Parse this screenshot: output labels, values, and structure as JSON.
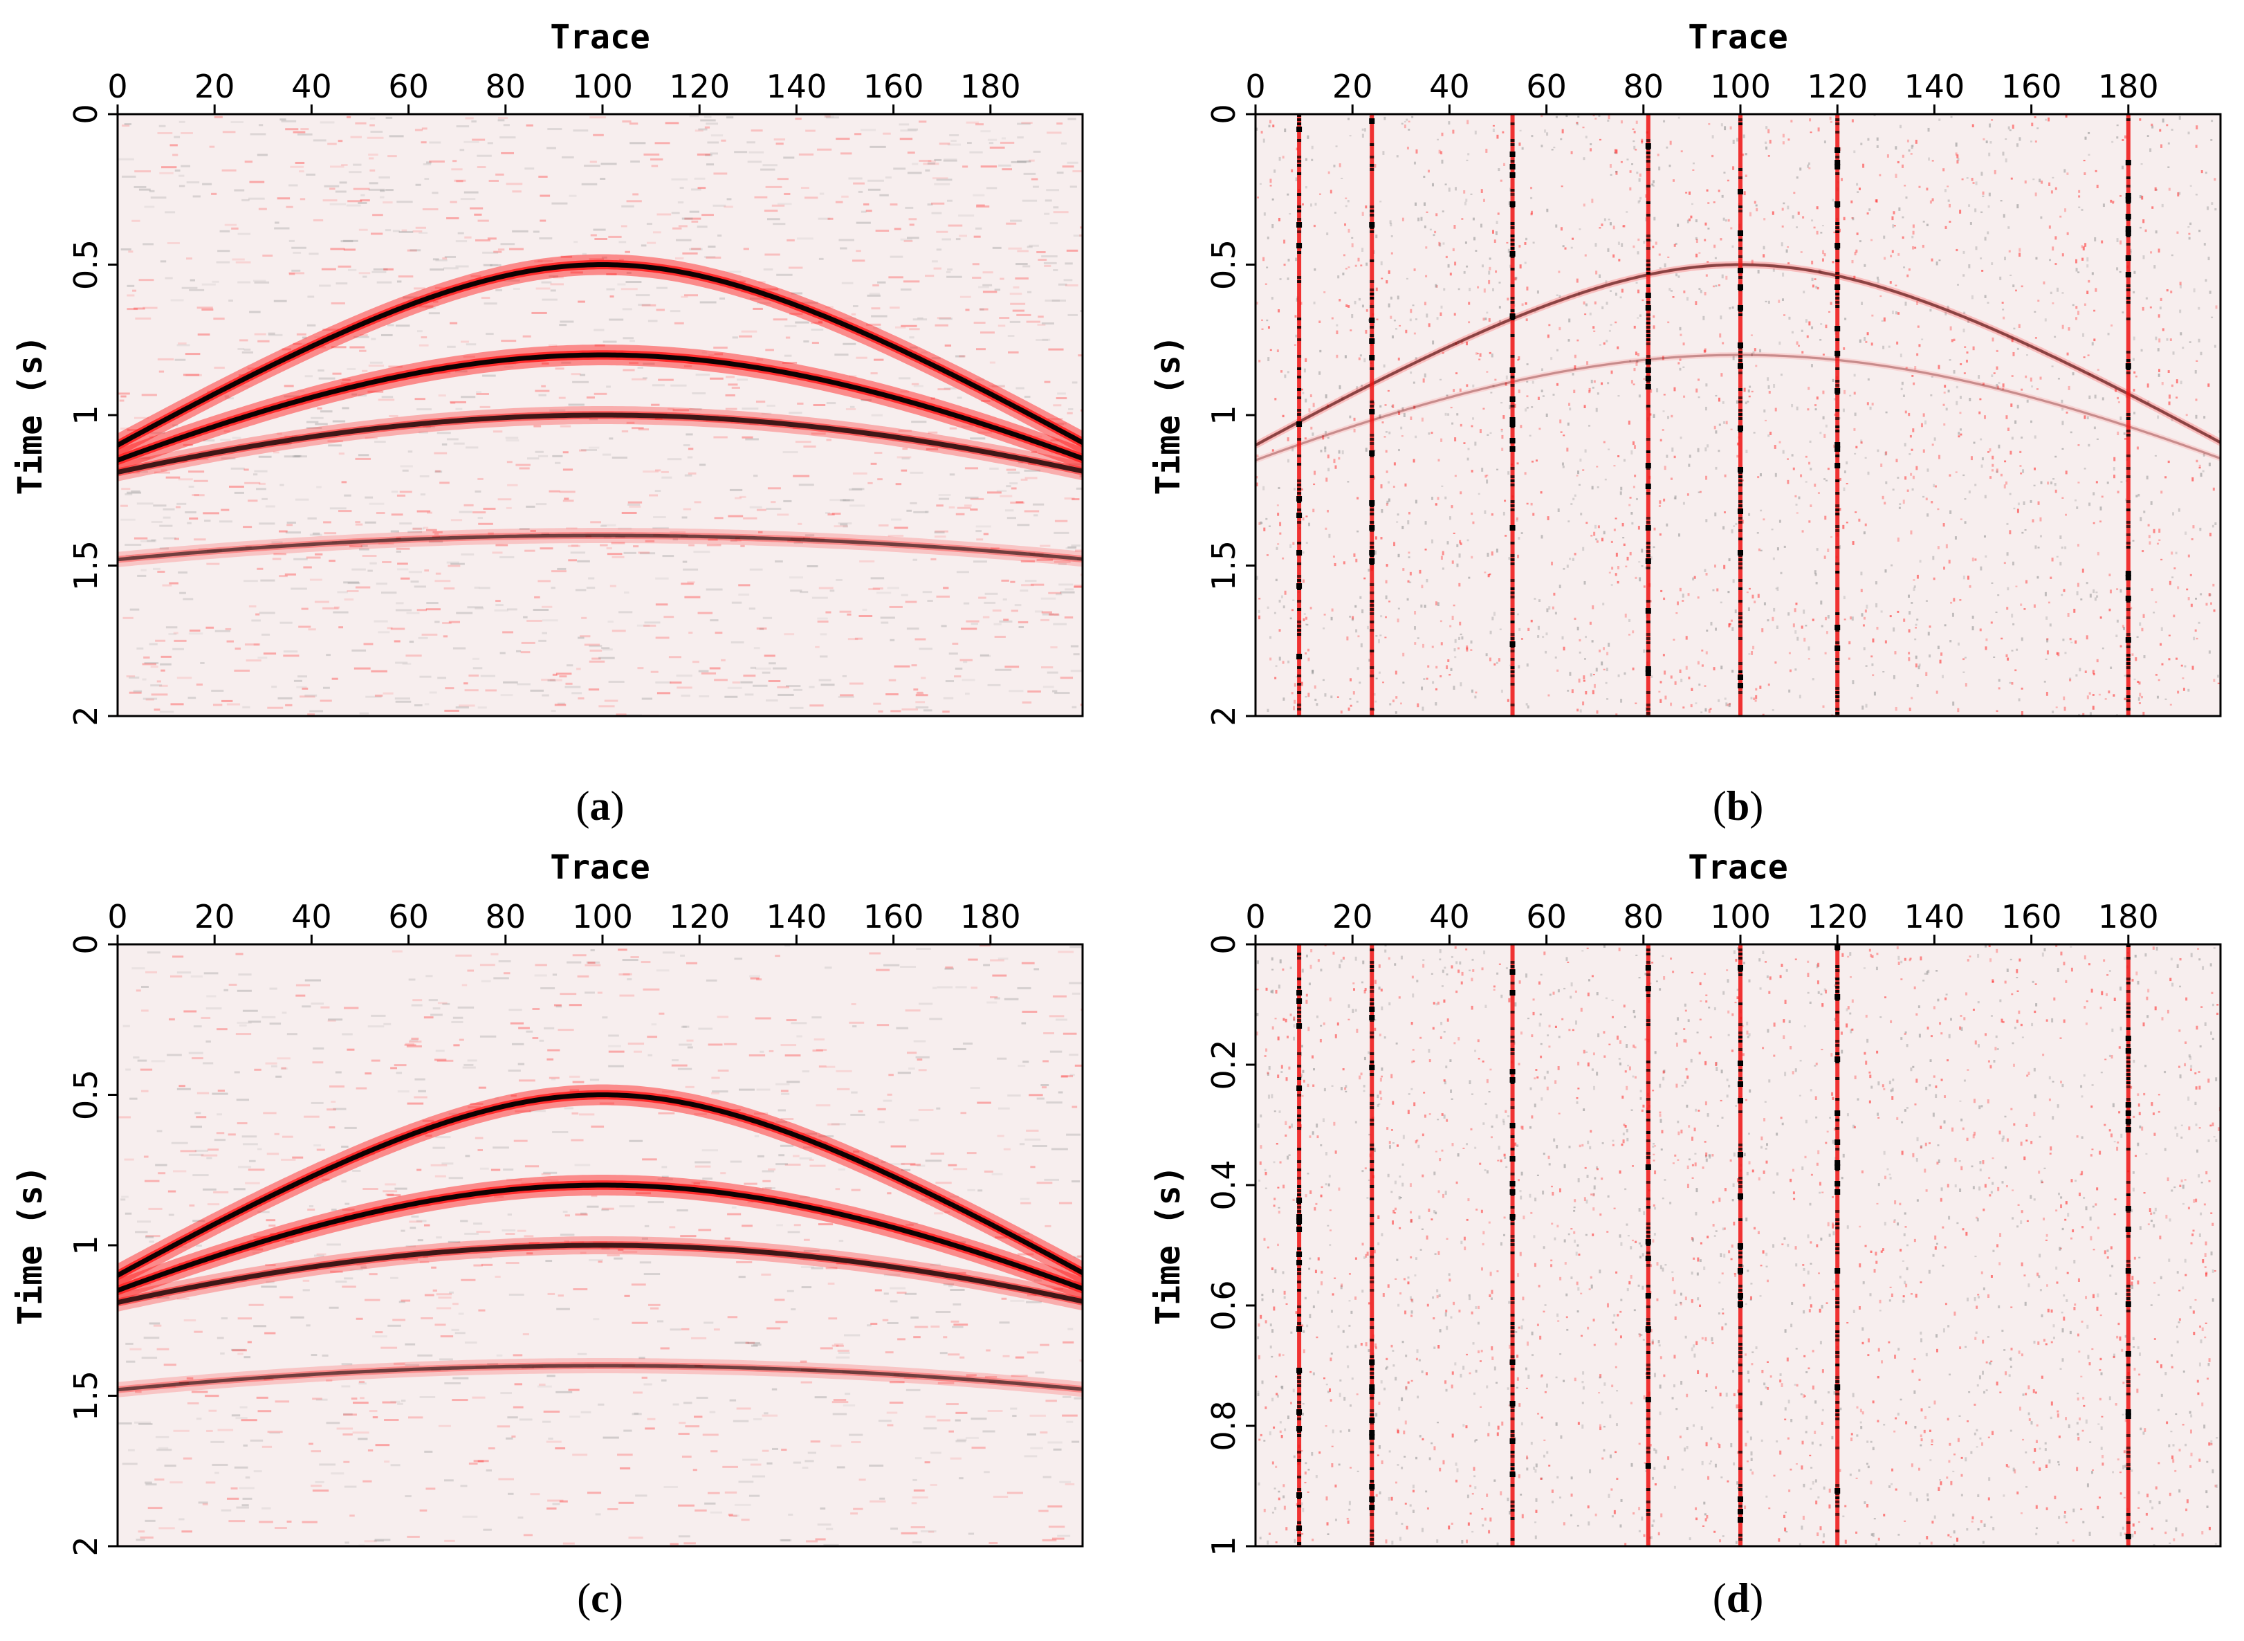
{
  "colors": {
    "background": "#f7eeee",
    "frame": "#000000",
    "wiggle_dark": "#000000",
    "wiggle_red": "#ff1a1a",
    "spike_red": "#ee1111",
    "noise_gray": "#8a8a8a"
  },
  "chart_data": [
    {
      "type": "heatmap",
      "panel": "(a)",
      "panel_letter": "a",
      "title": "",
      "xlabel": "Trace",
      "ylabel": "Time (s)",
      "xlim": [
        0,
        199
      ],
      "ylim": [
        0,
        2
      ],
      "x_ticks": [
        "0",
        "20",
        "40",
        "60",
        "80",
        "100",
        "120",
        "140",
        "160",
        "180"
      ],
      "y_ticks": [
        "0",
        "0.5",
        "1",
        "1.5",
        "2"
      ],
      "events": [
        {
          "t0": 0.5,
          "t_edge": 1.1,
          "strength": "strong"
        },
        {
          "t0": 0.8,
          "t_edge": 1.15,
          "strength": "strong"
        },
        {
          "t0": 1.0,
          "t_edge": 1.19,
          "strength": "medium"
        },
        {
          "t0": 1.4,
          "t_edge": 1.48,
          "strength": "weak"
        }
      ],
      "noise": "random",
      "spike_traces": []
    },
    {
      "type": "heatmap",
      "panel": "(b)",
      "panel_letter": "b",
      "title": "",
      "xlabel": "Trace",
      "ylabel": "Time (s)",
      "xlim": [
        0,
        199
      ],
      "ylim": [
        0,
        2
      ],
      "x_ticks": [
        "0",
        "20",
        "40",
        "60",
        "80",
        "100",
        "120",
        "140",
        "160",
        "180"
      ],
      "y_ticks": [
        "0",
        "0.5",
        "1",
        "1.5",
        "2"
      ],
      "events": [
        {
          "t0": 0.5,
          "t_edge": 1.1,
          "strength": "faint"
        },
        {
          "t0": 0.8,
          "t_edge": 1.15,
          "strength": "very-faint"
        }
      ],
      "noise": "dense",
      "spike_traces": [
        9,
        24,
        53,
        81,
        100,
        120,
        180
      ]
    },
    {
      "type": "heatmap",
      "panel": "(c)",
      "panel_letter": "c",
      "title": "",
      "xlabel": "Trace",
      "ylabel": "Time (s)",
      "xlim": [
        0,
        199
      ],
      "ylim": [
        0,
        2
      ],
      "x_ticks": [
        "0",
        "20",
        "40",
        "60",
        "80",
        "100",
        "120",
        "140",
        "160",
        "180"
      ],
      "y_ticks": [
        "0",
        "0.5",
        "1",
        "1.5",
        "2"
      ],
      "events": [
        {
          "t0": 0.5,
          "t_edge": 1.1,
          "strength": "strong"
        },
        {
          "t0": 0.8,
          "t_edge": 1.15,
          "strength": "strong"
        },
        {
          "t0": 1.0,
          "t_edge": 1.19,
          "strength": "medium"
        },
        {
          "t0": 1.4,
          "t_edge": 1.48,
          "strength": "weak"
        }
      ],
      "noise": "light",
      "spike_traces": []
    },
    {
      "type": "heatmap",
      "panel": "(d)",
      "panel_letter": "d",
      "title": "",
      "xlabel": "Trace",
      "ylabel": "Time (s)",
      "xlim": [
        0,
        199
      ],
      "ylim": [
        0,
        1
      ],
      "x_ticks": [
        "0",
        "20",
        "40",
        "60",
        "80",
        "100",
        "120",
        "140",
        "160",
        "180"
      ],
      "y_ticks": [
        "0",
        "0.2",
        "0.4",
        "0.6",
        "0.8",
        "1"
      ],
      "events": [],
      "noise": "dense",
      "spike_traces": [
        9,
        24,
        53,
        81,
        100,
        120,
        180
      ]
    }
  ]
}
